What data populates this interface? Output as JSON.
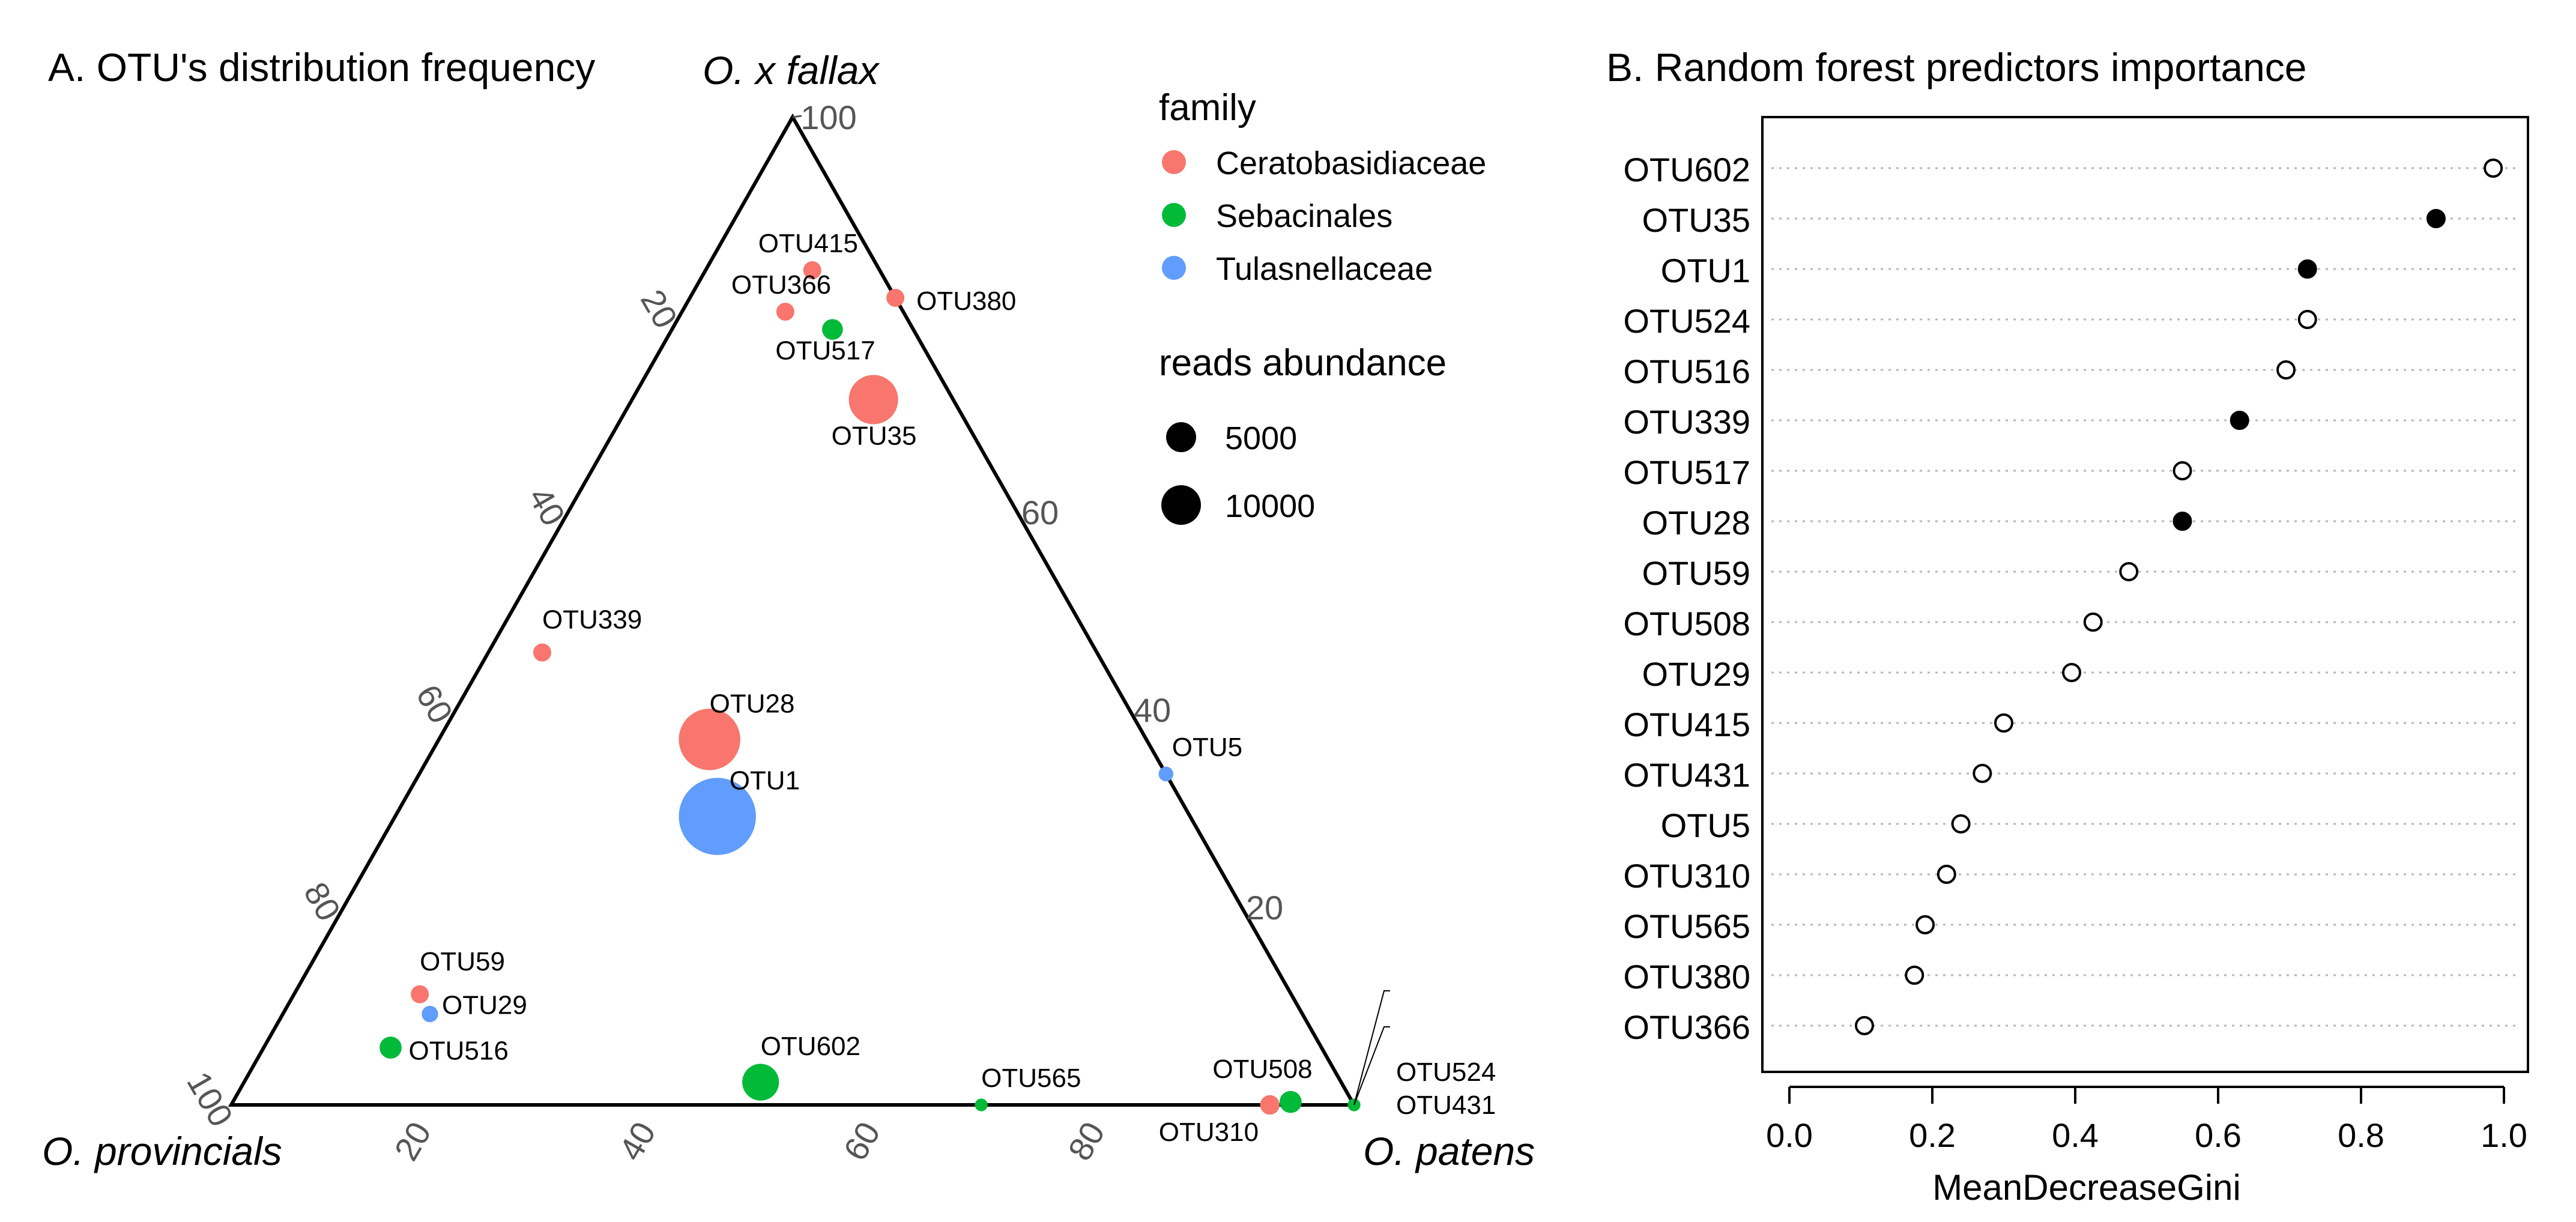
{
  "chart_data": [
    {
      "type": "scatter",
      "subtype": "ternary",
      "title": "A. OTU's distribution frequency",
      "vertex_labels": {
        "top": "O. x fallax",
        "left": "O. provincials",
        "right": "O. patens"
      },
      "axis_ticks": {
        "left": [
          "20",
          "40",
          "60",
          "80",
          "100"
        ],
        "right": [
          "20",
          "40",
          "60"
        ],
        "bottom": [
          "20",
          "40",
          "60",
          "80"
        ],
        "top": "100"
      },
      "legend": {
        "family_title": "family",
        "families": [
          {
            "name": "Ceratobasidiaceae",
            "color": "#F8766D"
          },
          {
            "name": "Sebacinales",
            "color": "#00BA38"
          },
          {
            "name": "Tulasnellaceae",
            "color": "#619CFF"
          }
        ],
        "size_title": "reads abundance",
        "sizes": [
          {
            "label": "5000",
            "value": 5000
          },
          {
            "label": "10000",
            "value": 10000
          }
        ],
        "placement": "top-right"
      },
      "points": [
        {
          "label": "OTU415",
          "fallax": 84.5,
          "patens": 9.5,
          "provincials": 6.0,
          "family": "Ceratobasidiaceae",
          "reads": 600
        },
        {
          "label": "OTU380",
          "fallax": 81.7,
          "patens": 18.3,
          "provincials": 0.0,
          "family": "Ceratobasidiaceae",
          "reads": 600
        },
        {
          "label": "OTU366",
          "fallax": 80.3,
          "patens": 9.2,
          "provincials": 10.5,
          "family": "Ceratobasidiaceae",
          "reads": 600
        },
        {
          "label": "OTU517",
          "fallax": 78.5,
          "patens": 14.3,
          "provincials": 7.2,
          "family": "Sebacinales",
          "reads": 800
        },
        {
          "label": "OTU35",
          "fallax": 71.4,
          "patens": 21.5,
          "provincials": 7.1,
          "family": "Ceratobasidiaceae",
          "reads": 4500
        },
        {
          "label": "OTU339",
          "fallax": 45.8,
          "patens": 4.8,
          "provincials": 49.4,
          "family": "Ceratobasidiaceae",
          "reads": 600
        },
        {
          "label": "OTU28",
          "fallax": 37.0,
          "patens": 24.1,
          "provincials": 38.9,
          "family": "Ceratobasidiaceae",
          "reads": 7000
        },
        {
          "label": "OTU1",
          "fallax": 29.2,
          "patens": 28.7,
          "provincials": 42.1,
          "family": "Tulasnellaceae",
          "reads": 11000
        },
        {
          "label": "OTU5",
          "fallax": 33.5,
          "patens": 66.5,
          "provincials": 0.0,
          "family": "Tulasnellaceae",
          "reads": 400
        },
        {
          "label": "OTU59",
          "fallax": 11.2,
          "patens": 11.2,
          "provincials": 77.6,
          "family": "Ceratobasidiaceae",
          "reads": 600
        },
        {
          "label": "OTU29",
          "fallax": 9.2,
          "patens": 13.1,
          "provincials": 77.7,
          "family": "Tulasnellaceae",
          "reads": 500
        },
        {
          "label": "OTU516",
          "fallax": 5.8,
          "patens": 11.3,
          "provincials": 82.9,
          "family": "Sebacinales",
          "reads": 900
        },
        {
          "label": "OTU602",
          "fallax": 2.3,
          "patens": 46.0,
          "provincials": 51.7,
          "family": "Sebacinales",
          "reads": 2500
        },
        {
          "label": "OTU565",
          "fallax": 0.0,
          "patens": 66.8,
          "provincials": 33.2,
          "family": "Sebacinales",
          "reads": 300
        },
        {
          "label": "OTU508",
          "fallax": 0.3,
          "patens": 94.2,
          "provincials": 5.5,
          "family": "Sebacinales",
          "reads": 900
        },
        {
          "label": "OTU310",
          "fallax": 0.0,
          "patens": 92.5,
          "provincials": 7.5,
          "family": "Ceratobasidiaceae",
          "reads": 700
        },
        {
          "label": "OTU524",
          "fallax": 0.0,
          "patens": 100.0,
          "provincials": 0.0,
          "family": "Ceratobasidiaceae",
          "reads": 300
        },
        {
          "label": "OTU431",
          "fallax": 0.0,
          "patens": 100.0,
          "provincials": 0.0,
          "family": "Sebacinales",
          "reads": 300
        }
      ]
    },
    {
      "type": "scatter",
      "subtype": "dotchart",
      "title": "B. Random forest predictors importance",
      "xlabel": "MeanDecreaseGini",
      "xlim": [
        0.0,
        1.0
      ],
      "xticks": [
        "0.0",
        "0.2",
        "0.4",
        "0.6",
        "0.8",
        "1.0"
      ],
      "grid": "dotted-horizontal",
      "categories": [
        "OTU602",
        "OTU35",
        "OTU1",
        "OTU524",
        "OTU516",
        "OTU339",
        "OTU517",
        "OTU28",
        "OTU59",
        "OTU508",
        "OTU29",
        "OTU415",
        "OTU431",
        "OTU5",
        "OTU310",
        "OTU565",
        "OTU380",
        "OTU366"
      ],
      "values": [
        0.985,
        0.905,
        0.725,
        0.725,
        0.695,
        0.63,
        0.55,
        0.55,
        0.475,
        0.425,
        0.395,
        0.3,
        0.27,
        0.24,
        0.22,
        0.19,
        0.175,
        0.105
      ],
      "filled": [
        false,
        true,
        true,
        false,
        false,
        true,
        false,
        true,
        false,
        false,
        false,
        false,
        false,
        false,
        false,
        false,
        false,
        false
      ]
    }
  ]
}
